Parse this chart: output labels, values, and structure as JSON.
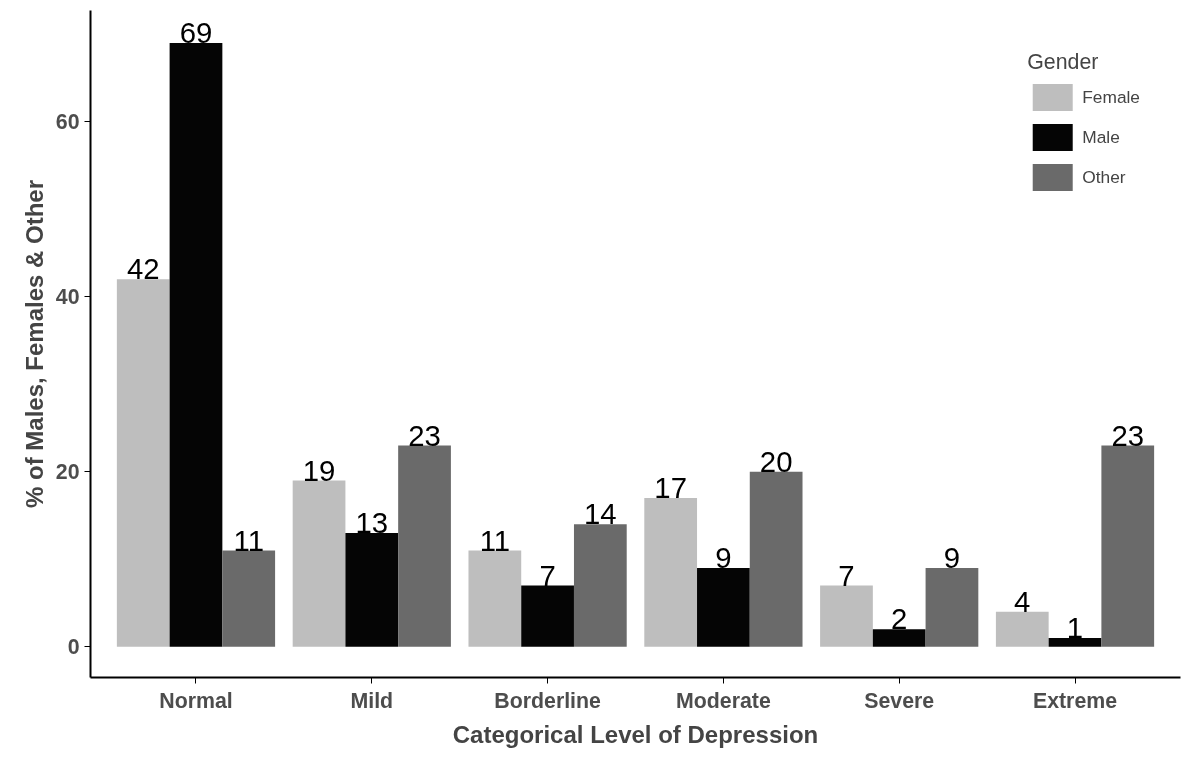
{
  "chart_data": {
    "type": "bar",
    "xlabel": "Categorical Level of Depression",
    "ylabel": "% of Males, Females & Other",
    "legend_title": "Gender",
    "categories": [
      "Normal",
      "Mild",
      "Borderline",
      "Moderate",
      "Severe",
      "Extreme"
    ],
    "series": [
      {
        "name": "Female",
        "color": "#bebebe",
        "values": [
          42,
          19,
          11,
          17,
          7,
          4
        ]
      },
      {
        "name": "Male",
        "color": "#050505",
        "values": [
          69,
          13,
          7,
          9,
          2,
          1
        ]
      },
      {
        "name": "Other",
        "color": "#6a6a6a",
        "values": [
          11,
          23,
          14,
          20,
          9,
          23
        ]
      }
    ],
    "ylim": [
      -3.5,
      72.7
    ],
    "yticks": [
      0,
      20,
      40,
      60
    ],
    "grid": false,
    "legend": "top right",
    "data_labels": true
  }
}
